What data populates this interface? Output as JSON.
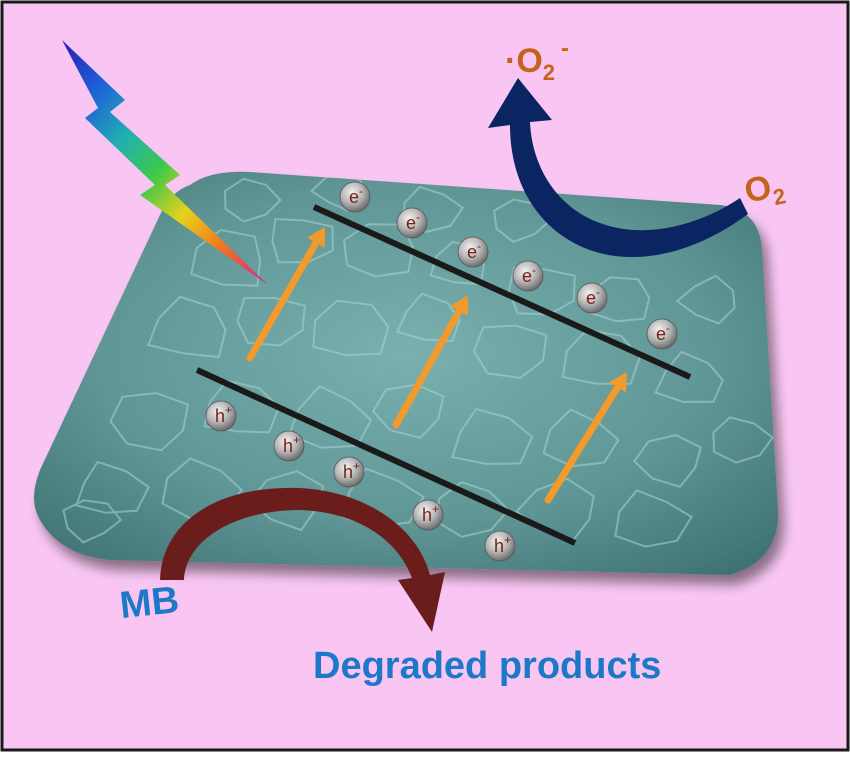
{
  "colors": {
    "background": "#f9c6f3",
    "frame": "#1a1a1a",
    "sheet": "#5f9595",
    "sheet_dark": "#3e6e6e",
    "band_line": "#1a1a1a",
    "arrow_orange": "#f29a2b",
    "superoxide_arrow": "#0b2462",
    "mb_arrow": "#6b1d1c",
    "label_orange": "#c5621b",
    "label_blue": "#1e78c8",
    "particle_text": "#7a1f14"
  },
  "labels": {
    "o2_radical_dot": "·",
    "o2_radical_base": "O",
    "o2_radical_sub": "2",
    "o2_radical_sup": "-",
    "o2_base": "O",
    "o2_sub": "2",
    "mb": "MB",
    "degraded": "Degraded products"
  },
  "electrons": {
    "base": "e",
    "charge": "-",
    "count": 6
  },
  "holes": {
    "base": "h",
    "charge": "+",
    "count": 5
  },
  "icons": [
    "light-bolt-icon",
    "excitation-arrow-icon",
    "superoxide-curved-arrow-icon",
    "degradation-curved-arrow-icon"
  ]
}
